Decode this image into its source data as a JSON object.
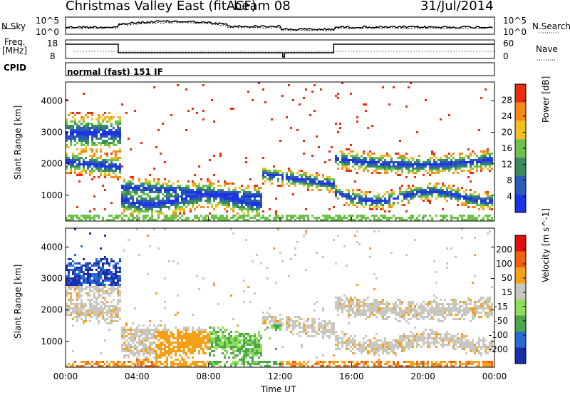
{
  "header": {
    "title": "Christmas Valley East (fitACF)",
    "beam": "beam 08",
    "date": "31/Jul/2014"
  },
  "noise_panel": {
    "left_label": "N.Sky",
    "right_label": "N.Search",
    "left_ticks": [
      "10^5",
      "10^0"
    ],
    "right_ticks": [
      "10^5",
      "10^0"
    ]
  },
  "freq_panel": {
    "left_label_1": "Freq.",
    "left_label_2": "[MHz]",
    "right_label": "Nave",
    "left_ticks": [
      "18",
      "8"
    ],
    "right_ticks": [
      "60",
      "0"
    ]
  },
  "cpid": {
    "label": "CPID",
    "text": "normal (fast) 151 IF"
  },
  "chart_data": [
    {
      "type": "heatmap",
      "name": "Power",
      "ylabel": "Slant Range [km]",
      "y_ticks": [
        1000,
        2000,
        3000,
        4000
      ],
      "ylim": [
        180,
        4600
      ],
      "x_ticks": [
        "00:00",
        "04:00",
        "08:00",
        "12:00",
        "16:00",
        "20:00",
        "00:00"
      ],
      "xlim_hours": [
        0,
        24
      ],
      "colorbar": {
        "label": "Power [dB]",
        "ticks": [
          4,
          8,
          12,
          16,
          20,
          24,
          28
        ],
        "colors": [
          "#1c33e6",
          "#2a5bb8",
          "#3b8a5e",
          "#6cc24a",
          "#f0c020",
          "#f58a14",
          "#e82d10"
        ]
      }
    },
    {
      "type": "heatmap",
      "name": "Velocity",
      "ylabel": "Slant Range [km]",
      "y_ticks": [
        1000,
        2000,
        3000,
        4000
      ],
      "ylim": [
        180,
        4600
      ],
      "x_ticks": [
        "00:00",
        "04:00",
        "08:00",
        "12:00",
        "16:00",
        "20:00",
        "00:00"
      ],
      "xlim_hours": [
        0,
        24
      ],
      "xlabel": "Time UT",
      "colorbar": {
        "label": "Velocity [m s^-1]",
        "ticks": [
          200,
          100,
          50,
          15,
          -15,
          -50,
          -100,
          -200
        ],
        "colors": [
          "#1a2fa8",
          "#2a6ad6",
          "#4aa84a",
          "#8fdc5a",
          "#c8c8c0",
          "#f5a018",
          "#f06010",
          "#e01010"
        ]
      }
    }
  ]
}
